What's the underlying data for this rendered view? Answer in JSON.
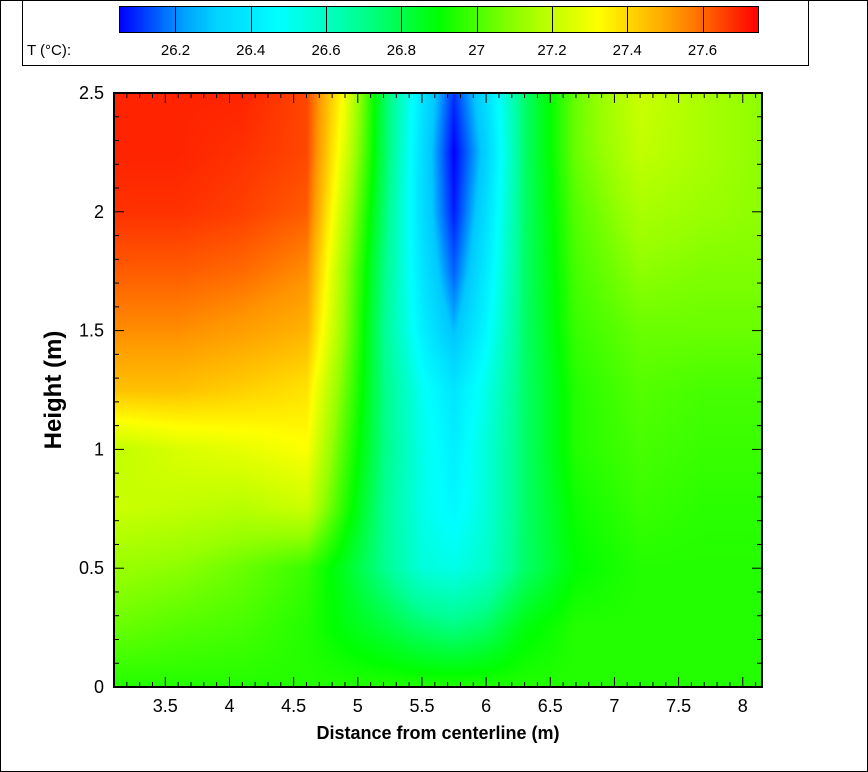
{
  "chart_data": {
    "type": "heatmap",
    "xlabel": "Distance from centerline (m)",
    "ylabel": "Height (m)",
    "xlim": [
      3.1,
      8.15
    ],
    "ylim": [
      0,
      2.5
    ],
    "x_ticks": [
      3.5,
      4,
      4.5,
      5,
      5.5,
      6,
      6.5,
      7,
      7.5,
      8
    ],
    "x_tick_labels": [
      "3.5",
      "4",
      "4.5",
      "5",
      "5.5",
      "6",
      "6.5",
      "7",
      "7.5",
      "8"
    ],
    "y_ticks": [
      0,
      0.5,
      1,
      1.5,
      2,
      2.5
    ],
    "y_tick_labels": [
      "0",
      "0.5",
      "1",
      "1.5",
      "2",
      "2.5"
    ],
    "colorbar": {
      "title": "T (°C):",
      "range": [
        26.05,
        27.75
      ],
      "levels": [
        26.1,
        26.2,
        26.3,
        26.4,
        26.5,
        26.6,
        26.7,
        26.8,
        26.9,
        27.0,
        27.1,
        27.2,
        27.3,
        27.4,
        27.5,
        27.6,
        27.7
      ],
      "tick_values": [
        26.2,
        26.4,
        26.6,
        26.8,
        27.0,
        27.2,
        27.4,
        27.6
      ],
      "tick_labels": [
        "26.2",
        "26.4",
        "26.6",
        "26.8",
        "27",
        "27.2",
        "27.4",
        "27.6"
      ],
      "colormap": [
        "#0000ff",
        "#00c8ff",
        "#00ffff",
        "#00ff96",
        "#00ff00",
        "#96ff00",
        "#ffff00",
        "#ff9600",
        "#ff0000"
      ]
    },
    "x": [
      3.1,
      3.6,
      4.1,
      4.6,
      4.9,
      5.2,
      5.5,
      5.75,
      6.0,
      6.3,
      6.7,
      7.2,
      7.7,
      8.15
    ],
    "y": [
      0.0,
      0.25,
      0.5,
      0.75,
      1.0,
      1.25,
      1.5,
      1.75,
      2.0,
      2.25,
      2.5
    ],
    "z": [
      [
        26.95,
        26.95,
        26.95,
        26.95,
        26.95,
        26.95,
        26.95,
        26.95,
        26.95,
        26.95,
        26.95,
        26.95,
        26.95,
        26.95
      ],
      [
        27.05,
        27.02,
        27.0,
        26.95,
        26.88,
        26.82,
        26.75,
        26.72,
        26.76,
        26.88,
        26.95,
        26.95,
        26.95,
        26.95
      ],
      [
        27.12,
        27.1,
        27.05,
        26.98,
        26.85,
        26.7,
        26.55,
        26.52,
        26.58,
        26.75,
        26.9,
        26.95,
        26.95,
        26.95
      ],
      [
        27.22,
        27.2,
        27.18,
        27.22,
        26.95,
        26.7,
        26.52,
        26.45,
        26.55,
        26.75,
        26.92,
        26.98,
        26.96,
        26.96
      ],
      [
        27.2,
        27.25,
        27.28,
        27.32,
        27.0,
        26.72,
        26.52,
        26.42,
        26.55,
        26.75,
        26.95,
        27.0,
        26.98,
        26.98
      ],
      [
        27.45,
        27.45,
        27.42,
        27.38,
        27.05,
        26.72,
        26.5,
        26.38,
        26.52,
        26.75,
        26.95,
        27.02,
        27.0,
        27.0
      ],
      [
        27.55,
        27.55,
        27.52,
        27.48,
        27.1,
        26.7,
        26.42,
        26.25,
        26.45,
        26.75,
        26.98,
        27.05,
        27.05,
        27.05
      ],
      [
        27.62,
        27.62,
        27.6,
        27.55,
        27.12,
        26.72,
        26.38,
        26.15,
        26.4,
        26.75,
        27.0,
        27.1,
        27.08,
        27.08
      ],
      [
        27.68,
        27.68,
        27.66,
        27.62,
        27.18,
        26.75,
        26.35,
        26.08,
        26.35,
        26.75,
        27.02,
        27.15,
        27.12,
        27.1
      ],
      [
        27.7,
        27.7,
        27.68,
        27.65,
        27.25,
        26.78,
        26.35,
        26.05,
        26.3,
        26.75,
        27.05,
        27.2,
        27.15,
        27.1
      ],
      [
        27.7,
        27.7,
        27.7,
        27.65,
        27.3,
        26.78,
        26.38,
        26.1,
        26.35,
        26.75,
        27.05,
        27.22,
        27.15,
        27.1
      ]
    ]
  }
}
